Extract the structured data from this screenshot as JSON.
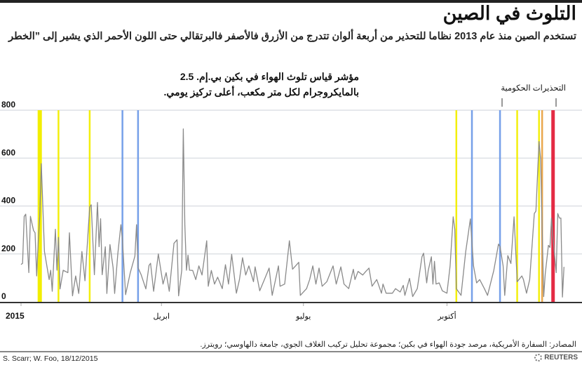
{
  "title": "التلوث في الصين",
  "subtitle": "تستخدم الصين منذ عام 2013 نظاما للتحذير من أربعة ألوان تتدرج من الأزرق فالأصفر فالبرتقالي حتى اللون الأحمر الذي يشير إلى ”الخطر",
  "annotation": {
    "line1": "مؤشر قياس تلوث الهواء في بكين بي.إم. 2.5",
    "line2": "بالمايكروجرام لكل متر مكعب، أعلى تركيز يومي."
  },
  "warnings_label": "التحذيرات الحكومية",
  "source": "المصادر: السفارة الأمريكية، مرصد جودة الهواء في بكين؛ مجموعة تحليل تركيب الغلاف الجوي، جامعة دالهاوسي؛ رويترز.",
  "credit": "S. Scarr; W. Foo, 18/12/2015",
  "logo": "REUTERS",
  "chart_data": {
    "type": "line",
    "ylim": [
      0,
      800
    ],
    "yticks": [
      0,
      200,
      400,
      600,
      800
    ],
    "xlim": [
      "2015-01-01",
      "2015-12-18"
    ],
    "xticks": [
      {
        "date": "2015-01-01",
        "label": "2015"
      },
      {
        "date": "2015-04-01",
        "label": "ابريل"
      },
      {
        "date": "2015-07-01",
        "label": "يوليو"
      },
      {
        "date": "2015-10-01",
        "label": "أكتوبر"
      }
    ],
    "grid": true,
    "line_color": "#8a8a8a",
    "warning_colors": {
      "blue": "#6f9be8",
      "yellow": "#f2ee00",
      "orange": "#e9a243",
      "red": "#e3203a"
    },
    "warnings": [
      {
        "date": "2015-01-13",
        "level": "yellow"
      },
      {
        "date": "2015-01-25",
        "level": "yellow"
      },
      {
        "date": "2015-02-14",
        "level": "yellow"
      },
      {
        "date": "2015-03-07",
        "level": "blue"
      },
      {
        "date": "2015-03-17",
        "level": "blue"
      },
      {
        "date": "2015-10-07",
        "level": "yellow"
      },
      {
        "date": "2015-10-17",
        "level": "blue"
      },
      {
        "date": "2015-11-04",
        "level": "blue"
      },
      {
        "date": "2015-11-15",
        "level": "yellow"
      },
      {
        "date": "2015-11-29",
        "level": "yellow"
      },
      {
        "date": "2015-12-01",
        "level": "orange"
      },
      {
        "date": "2015-12-08",
        "level": "red"
      }
    ],
    "series": [
      {
        "points": [
          [
            "2015-01-01",
            156
          ],
          [
            "2015-01-02",
            161
          ],
          [
            "2015-01-03",
            357
          ],
          [
            "2015-01-04",
            366
          ],
          [
            "2015-01-06",
            122
          ],
          [
            "2015-01-07",
            357
          ],
          [
            "2015-01-09",
            298
          ],
          [
            "2015-01-10",
            288
          ],
          [
            "2015-01-11",
            108
          ],
          [
            "2015-01-12",
            249
          ],
          [
            "2015-01-13",
            357
          ],
          [
            "2015-01-14",
            577
          ],
          [
            "2015-01-16",
            210
          ],
          [
            "2015-01-19",
            93
          ],
          [
            "2015-01-20",
            132
          ],
          [
            "2015-01-21",
            44
          ],
          [
            "2015-01-23",
            303
          ],
          [
            "2015-01-24",
            132
          ],
          [
            "2015-01-25",
            269
          ],
          [
            "2015-01-26",
            54
          ],
          [
            "2015-01-28",
            132
          ],
          [
            "2015-01-31",
            122
          ],
          [
            "2015-02-01",
            288
          ],
          [
            "2015-02-03",
            25
          ],
          [
            "2015-02-05",
            108
          ],
          [
            "2015-02-07",
            35
          ],
          [
            "2015-02-09",
            210
          ],
          [
            "2015-02-11",
            88
          ],
          [
            "2015-02-14",
            396
          ],
          [
            "2015-02-15",
            405
          ],
          [
            "2015-02-17",
            113
          ],
          [
            "2015-02-19",
            415
          ],
          [
            "2015-02-20",
            230
          ],
          [
            "2015-02-21",
            347
          ],
          [
            "2015-02-22",
            113
          ],
          [
            "2015-02-24",
            230
          ],
          [
            "2015-02-25",
            35
          ],
          [
            "2015-02-27",
            239
          ],
          [
            "2015-03-01",
            142
          ],
          [
            "2015-03-02",
            35
          ],
          [
            "2015-03-04",
            200
          ],
          [
            "2015-03-06",
            322
          ],
          [
            "2015-03-07",
            259
          ],
          [
            "2015-03-09",
            30
          ],
          [
            "2015-03-12",
            122
          ],
          [
            "2015-03-15",
            191
          ],
          [
            "2015-03-16",
            322
          ],
          [
            "2015-03-17",
            142
          ],
          [
            "2015-03-19",
            113
          ],
          [
            "2015-03-22",
            54
          ],
          [
            "2015-03-24",
            152
          ],
          [
            "2015-03-25",
            161
          ],
          [
            "2015-03-27",
            44
          ],
          [
            "2015-03-30",
            200
          ],
          [
            "2015-04-02",
            74
          ],
          [
            "2015-04-04",
            122
          ],
          [
            "2015-04-06",
            44
          ],
          [
            "2015-04-09",
            244
          ],
          [
            "2015-04-11",
            259
          ],
          [
            "2015-04-12",
            25
          ],
          [
            "2015-04-14",
            132
          ],
          [
            "2015-04-15",
            722
          ],
          [
            "2015-04-16",
            322
          ],
          [
            "2015-04-17",
            132
          ],
          [
            "2015-04-18",
            195
          ],
          [
            "2015-04-19",
            132
          ],
          [
            "2015-04-21",
            131
          ],
          [
            "2015-04-23",
            93
          ],
          [
            "2015-04-25",
            150
          ],
          [
            "2015-04-27",
            112
          ],
          [
            "2015-04-30",
            255
          ],
          [
            "2015-05-01",
            65
          ],
          [
            "2015-05-03",
            131
          ],
          [
            "2015-05-05",
            74
          ],
          [
            "2015-05-07",
            103
          ],
          [
            "2015-05-10",
            55
          ],
          [
            "2015-05-12",
            155
          ],
          [
            "2015-05-14",
            74
          ],
          [
            "2015-05-16",
            198
          ],
          [
            "2015-05-19",
            36
          ],
          [
            "2015-05-21",
            93
          ],
          [
            "2015-05-23",
            184
          ],
          [
            "2015-05-25",
            112
          ],
          [
            "2015-05-27",
            150
          ],
          [
            "2015-05-30",
            84
          ],
          [
            "2015-05-31",
            146
          ],
          [
            "2015-06-03",
            46
          ],
          [
            "2015-06-06",
            93
          ],
          [
            "2015-06-09",
            141
          ],
          [
            "2015-06-11",
            27
          ],
          [
            "2015-06-15",
            150
          ],
          [
            "2015-06-16",
            65
          ],
          [
            "2015-06-19",
            74
          ],
          [
            "2015-06-22",
            255
          ],
          [
            "2015-06-24",
            136
          ],
          [
            "2015-06-28",
            165
          ],
          [
            "2015-06-29",
            27
          ],
          [
            "2015-07-03",
            55
          ],
          [
            "2015-07-05",
            93
          ],
          [
            "2015-07-07",
            150
          ],
          [
            "2015-07-09",
            74
          ],
          [
            "2015-07-11",
            141
          ],
          [
            "2015-07-13",
            65
          ],
          [
            "2015-07-16",
            84
          ],
          [
            "2015-07-20",
            150
          ],
          [
            "2015-07-22",
            74
          ],
          [
            "2015-07-25",
            146
          ],
          [
            "2015-07-27",
            74
          ],
          [
            "2015-07-30",
            55
          ],
          [
            "2015-08-02",
            136
          ],
          [
            "2015-08-03",
            93
          ],
          [
            "2015-08-05",
            127
          ],
          [
            "2015-08-08",
            112
          ],
          [
            "2015-08-10",
            127
          ],
          [
            "2015-08-12",
            141
          ],
          [
            "2015-08-14",
            65
          ],
          [
            "2015-08-17",
            93
          ],
          [
            "2015-08-20",
            36
          ],
          [
            "2015-08-21",
            74
          ],
          [
            "2015-08-23",
            36
          ],
          [
            "2015-08-27",
            36
          ],
          [
            "2015-08-29",
            55
          ],
          [
            "2015-09-01",
            41
          ],
          [
            "2015-09-03",
            69
          ],
          [
            "2015-09-04",
            27
          ],
          [
            "2015-09-07",
            98
          ],
          [
            "2015-09-09",
            22
          ],
          [
            "2015-09-12",
            55
          ],
          [
            "2015-09-15",
            188
          ],
          [
            "2015-09-16",
            203
          ],
          [
            "2015-09-18",
            79
          ],
          [
            "2015-09-19",
            131
          ],
          [
            "2015-09-21",
            188
          ],
          [
            "2015-09-22",
            74
          ],
          [
            "2015-09-23",
            169
          ],
          [
            "2015-09-24",
            74
          ],
          [
            "2015-09-26",
            79
          ],
          [
            "2015-09-28",
            46
          ],
          [
            "2015-10-01",
            36
          ],
          [
            "2015-10-03",
            150
          ],
          [
            "2015-10-05",
            355
          ],
          [
            "2015-10-06",
            303
          ],
          [
            "2015-10-07",
            55
          ],
          [
            "2015-10-10",
            27
          ],
          [
            "2015-10-13",
            208
          ],
          [
            "2015-10-16",
            346
          ],
          [
            "2015-10-18",
            150
          ],
          [
            "2015-10-20",
            79
          ],
          [
            "2015-10-22",
            93
          ],
          [
            "2015-10-25",
            55
          ],
          [
            "2015-10-27",
            27
          ],
          [
            "2015-10-31",
            131
          ],
          [
            "2015-11-03",
            241
          ],
          [
            "2015-11-04",
            231
          ],
          [
            "2015-11-06",
            150
          ],
          [
            "2015-11-07",
            27
          ],
          [
            "2015-11-09",
            193
          ],
          [
            "2015-11-11",
            160
          ],
          [
            "2015-11-13",
            355
          ],
          [
            "2015-11-15",
            84
          ],
          [
            "2015-11-18",
            108
          ],
          [
            "2015-11-19",
            93
          ],
          [
            "2015-11-21",
            36
          ],
          [
            "2015-11-23",
            93
          ],
          [
            "2015-11-26",
            369
          ],
          [
            "2015-11-27",
            379
          ],
          [
            "2015-11-29",
            669
          ],
          [
            "2015-11-30",
            598
          ],
          [
            "2015-12-02",
            22
          ],
          [
            "2015-12-03",
            117
          ],
          [
            "2015-12-05",
            236
          ],
          [
            "2015-12-06",
            227
          ],
          [
            "2015-12-07",
            350
          ],
          [
            "2015-12-08",
            265
          ],
          [
            "2015-12-10",
            122
          ],
          [
            "2015-12-11",
            369
          ],
          [
            "2015-12-12",
            350
          ],
          [
            "2015-12-13",
            350
          ],
          [
            "2015-12-14",
            20
          ],
          [
            "2015-12-15",
            146
          ]
        ]
      }
    ]
  }
}
